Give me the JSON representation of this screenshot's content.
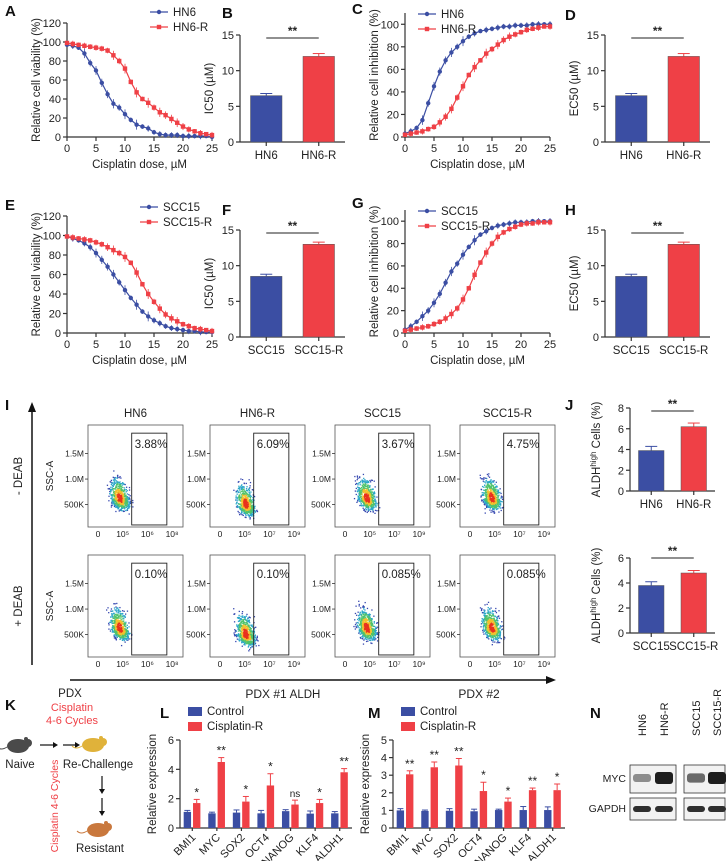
{
  "colors": {
    "blue": "#3b4ea3",
    "red": "#ef4046",
    "axis": "#333333"
  },
  "chart_data": [
    {
      "panel": "A",
      "type": "line",
      "ylabel": "Relative cell viability (%)",
      "xlabel": "Cisplatin dose, µM",
      "xlim": [
        0,
        25
      ],
      "ylim": [
        0,
        120
      ],
      "xticks": [
        0,
        5,
        10,
        15,
        20,
        25
      ],
      "yticks": [
        0,
        20,
        40,
        60,
        80,
        100,
        120
      ],
      "legend": "top-right",
      "x": [
        0,
        1,
        2,
        3,
        4,
        5,
        6,
        7,
        8,
        9,
        10,
        11,
        12,
        13,
        14,
        15,
        16,
        17,
        18,
        19,
        20,
        21,
        22,
        23,
        24,
        25
      ],
      "series": [
        {
          "name": "HN6",
          "color": "blue",
          "values": [
            97,
            96,
            94,
            88,
            78,
            70,
            57,
            45,
            35,
            31,
            24,
            18,
            13,
            11,
            9,
            5,
            3,
            2,
            2,
            2,
            1,
            1,
            1,
            1,
            1,
            0
          ]
        },
        {
          "name": "HN6-R",
          "color": "red",
          "values": [
            99,
            98,
            97,
            96,
            95,
            94,
            93,
            91,
            86,
            80,
            72,
            58,
            47,
            40,
            36,
            31,
            26,
            23,
            19,
            15,
            11,
            8,
            6,
            4,
            3,
            2
          ]
        }
      ]
    },
    {
      "panel": "B",
      "type": "bar",
      "ylabel": "IC50 (µM)",
      "ylim": [
        0,
        15
      ],
      "yticks": [
        0,
        5,
        10,
        15
      ],
      "categories": [
        "HN6",
        "HN6-R"
      ],
      "values": [
        6.5,
        12.0
      ],
      "errors": [
        0.3,
        0.4
      ],
      "significance": "**"
    },
    {
      "panel": "C",
      "type": "line",
      "ylabel": "Relative cell inhibition (%)",
      "xlabel": "Cisplatin dose, µM",
      "xlim": [
        0,
        25
      ],
      "ylim": [
        0,
        110
      ],
      "xticks": [
        0,
        5,
        10,
        15,
        20,
        25
      ],
      "yticks": [
        0,
        20,
        40,
        60,
        80,
        100
      ],
      "legend": "top-left",
      "x": [
        0,
        1,
        2,
        3,
        4,
        5,
        6,
        7,
        8,
        9,
        10,
        11,
        12,
        13,
        14,
        15,
        16,
        17,
        18,
        19,
        20,
        21,
        22,
        23,
        24,
        25
      ],
      "series": [
        {
          "name": "HN6",
          "color": "blue",
          "values": [
            3,
            5,
            8,
            15,
            30,
            45,
            58,
            68,
            75,
            80,
            85,
            89,
            92,
            94,
            95,
            96,
            97,
            98,
            98,
            99,
            99,
            99,
            100,
            100,
            100,
            100
          ]
        },
        {
          "name": "HN6-R",
          "color": "red",
          "values": [
            2,
            3,
            4,
            5,
            7,
            9,
            13,
            18,
            25,
            35,
            45,
            55,
            62,
            68,
            74,
            78,
            82,
            86,
            89,
            91,
            93,
            95,
            96,
            97,
            98,
            98
          ]
        }
      ]
    },
    {
      "panel": "D",
      "type": "bar",
      "ylabel": "EC50 (µM)",
      "ylim": [
        0,
        15
      ],
      "yticks": [
        0,
        5,
        10,
        15
      ],
      "categories": [
        "HN6",
        "HN6-R"
      ],
      "values": [
        6.5,
        12.0
      ],
      "errors": [
        0.3,
        0.4
      ],
      "significance": "**"
    },
    {
      "panel": "E",
      "type": "line",
      "ylabel": "Relative cell viability (%)",
      "xlabel": "Cisplatin dose, µM",
      "xlim": [
        0,
        25
      ],
      "ylim": [
        0,
        120
      ],
      "xticks": [
        0,
        5,
        10,
        15,
        20,
        25
      ],
      "yticks": [
        0,
        20,
        40,
        60,
        80,
        100,
        120
      ],
      "legend": "top-right",
      "x": [
        0,
        1,
        2,
        3,
        4,
        5,
        6,
        7,
        8,
        9,
        10,
        11,
        12,
        13,
        14,
        15,
        16,
        17,
        18,
        19,
        20,
        21,
        22,
        23,
        24,
        25
      ],
      "series": [
        {
          "name": "SCC15",
          "color": "blue",
          "values": [
            99,
            97,
            95,
            92,
            88,
            82,
            75,
            68,
            60,
            52,
            44,
            36,
            29,
            22,
            17,
            13,
            10,
            7,
            5,
            4,
            3,
            2,
            2,
            1,
            1,
            1
          ]
        },
        {
          "name": "SCC15-R",
          "color": "red",
          "values": [
            99,
            98,
            97,
            96,
            95,
            93,
            91,
            88,
            85,
            82,
            78,
            72,
            62,
            50,
            40,
            32,
            25,
            19,
            15,
            12,
            9,
            7,
            5,
            4,
            3,
            2
          ]
        }
      ]
    },
    {
      "panel": "F",
      "type": "bar",
      "ylabel": "IC50 (µM)",
      "ylim": [
        0,
        15
      ],
      "yticks": [
        0,
        5,
        10,
        15
      ],
      "categories": [
        "SCC15",
        "SCC15-R"
      ],
      "values": [
        8.5,
        13.0
      ],
      "errors": [
        0.3,
        0.3
      ],
      "significance": "**"
    },
    {
      "panel": "G",
      "type": "line",
      "ylabel": "Relative cell inhibition (%)",
      "xlabel": "Cisplatin dose, µM",
      "xlim": [
        0,
        25
      ],
      "ylim": [
        0,
        110
      ],
      "xticks": [
        0,
        5,
        10,
        15,
        20,
        25
      ],
      "yticks": [
        0,
        20,
        40,
        60,
        80,
        100
      ],
      "legend": "top-left",
      "x": [
        0,
        1,
        2,
        3,
        4,
        5,
        6,
        7,
        8,
        9,
        10,
        11,
        12,
        13,
        14,
        15,
        16,
        17,
        18,
        19,
        20,
        21,
        22,
        23,
        24,
        25
      ],
      "series": [
        {
          "name": "SCC15",
          "color": "blue",
          "values": [
            3,
            6,
            10,
            15,
            20,
            27,
            35,
            45,
            55,
            62,
            70,
            77,
            83,
            88,
            91,
            94,
            96,
            97,
            98,
            99,
            99,
            99,
            100,
            100,
            100,
            100
          ]
        },
        {
          "name": "SCC15-R",
          "color": "red",
          "values": [
            2,
            3,
            4,
            5,
            6,
            8,
            10,
            13,
            17,
            22,
            30,
            40,
            52,
            63,
            72,
            80,
            86,
            90,
            93,
            95,
            97,
            98,
            98,
            99,
            99,
            99
          ]
        }
      ]
    },
    {
      "panel": "H",
      "type": "bar",
      "ylabel": "EC50 (µM)",
      "ylim": [
        0,
        15
      ],
      "yticks": [
        0,
        5,
        10,
        15
      ],
      "categories": [
        "SCC15",
        "SCC15-R"
      ],
      "values": [
        8.5,
        13.0
      ],
      "errors": [
        0.3,
        0.3
      ],
      "significance": "**"
    },
    {
      "panel": "J1",
      "type": "bar",
      "ylabel": "ALDHhigh Cells (%)",
      "ylim": [
        0,
        8
      ],
      "yticks": [
        0,
        2,
        4,
        6,
        8
      ],
      "categories": [
        "HN6",
        "HN6-R"
      ],
      "values": [
        3.9,
        6.2
      ],
      "errors": [
        0.4,
        0.35
      ],
      "significance": "**"
    },
    {
      "panel": "J2",
      "type": "bar",
      "ylabel": "ALDHhigh Cells (%)",
      "ylim": [
        0,
        6
      ],
      "yticks": [
        0,
        2,
        4,
        6
      ],
      "categories": [
        "SCC15",
        "SCC15-R"
      ],
      "values": [
        3.8,
        4.8
      ],
      "errors": [
        0.3,
        0.2
      ],
      "significance": "**"
    },
    {
      "panel": "L",
      "type": "bar",
      "title": "PDX #1",
      "ylabel": "Relative expression",
      "ylim": [
        0,
        6
      ],
      "yticks": [
        0,
        2,
        4,
        6
      ],
      "legend": "top-left",
      "categories": [
        "BMI1",
        "MYC",
        "SOX2",
        "OCT4",
        "NANOG",
        "KLF4",
        "ALDH1"
      ],
      "series": [
        {
          "name": "Control",
          "color": "blue",
          "values": [
            1.1,
            1.0,
            1.05,
            1.0,
            1.15,
            0.98,
            1.0
          ],
          "errors": [
            0.1,
            0.08,
            0.18,
            0.2,
            0.1,
            0.18,
            0.12
          ]
        },
        {
          "name": "Cisplatin-R",
          "color": "red",
          "values": [
            1.7,
            4.5,
            1.8,
            2.9,
            1.6,
            1.7,
            3.8
          ],
          "errors": [
            0.25,
            0.3,
            0.35,
            0.8,
            0.3,
            0.25,
            0.25
          ]
        }
      ],
      "significance": [
        "*",
        "**",
        "*",
        "*",
        "ns",
        "*",
        "**"
      ]
    },
    {
      "panel": "M",
      "type": "bar",
      "title": "PDX #2",
      "ylabel": "Relative expression",
      "ylim": [
        0,
        5
      ],
      "yticks": [
        0,
        1,
        2,
        3,
        4,
        5
      ],
      "legend": "top-left",
      "categories": [
        "BMI1",
        "MYC",
        "SOX2",
        "OCT4",
        "NANOG",
        "KLF4",
        "ALDH1"
      ],
      "series": [
        {
          "name": "Control",
          "color": "blue",
          "values": [
            1.0,
            0.97,
            0.98,
            0.95,
            1.02,
            1.02,
            1.02
          ],
          "errors": [
            0.1,
            0.05,
            0.12,
            0.12,
            0.05,
            0.2,
            0.18
          ]
        },
        {
          "name": "Cisplatin-R",
          "color": "red",
          "values": [
            3.05,
            3.45,
            3.55,
            2.1,
            1.5,
            2.15,
            2.15
          ],
          "errors": [
            0.2,
            0.3,
            0.4,
            0.5,
            0.2,
            0.12,
            0.35
          ]
        }
      ],
      "significance": [
        "**",
        "**",
        "**",
        "*",
        "*",
        "**",
        "*"
      ]
    }
  ],
  "flow": {
    "panel": "I",
    "columns": [
      "HN6",
      "HN6-R",
      "SCC15",
      "SCC15-R"
    ],
    "rows": [
      "- DEAB",
      "+ DEAB"
    ],
    "ylabel": "SSC-A",
    "xlabel": "ALDH",
    "yticks": [
      "500K",
      "1.0M",
      "1.5M"
    ],
    "xticks": [
      [
        "0",
        "10⁵",
        "10⁶",
        "10⁸"
      ],
      [
        "0",
        "10⁵",
        "10⁷",
        "10⁹"
      ],
      [
        "0",
        "10⁵",
        "10⁷",
        "10⁹"
      ],
      [
        "0",
        "10⁵",
        "10⁷",
        "10⁹"
      ]
    ],
    "gates": [
      [
        "3.88%",
        "6.09%",
        "3.67%",
        "4.75%"
      ],
      [
        "0.10%",
        "0.10%",
        "0.085%",
        "0.085%"
      ]
    ]
  },
  "schematic": {
    "panel": "K",
    "pdx": "PDX",
    "cisplatin": "Cisplatin",
    "cycles": "4-6 Cycles",
    "naive": "Naive",
    "rechallenge": "Re-Challenge",
    "resistant": "Resistant",
    "vertical_cisplatin": "Cisplatin 4-6 Cycles"
  },
  "blot": {
    "panel": "N",
    "lanes": [
      "HN6",
      "HN6-R",
      "SCC15",
      "SCC15-R"
    ],
    "proteins": [
      "MYC",
      "GAPDH"
    ],
    "myc_intensity": [
      0.35,
      1.0,
      0.55,
      1.0
    ],
    "gapdh_intensity": [
      0.9,
      0.9,
      0.9,
      0.9
    ]
  }
}
